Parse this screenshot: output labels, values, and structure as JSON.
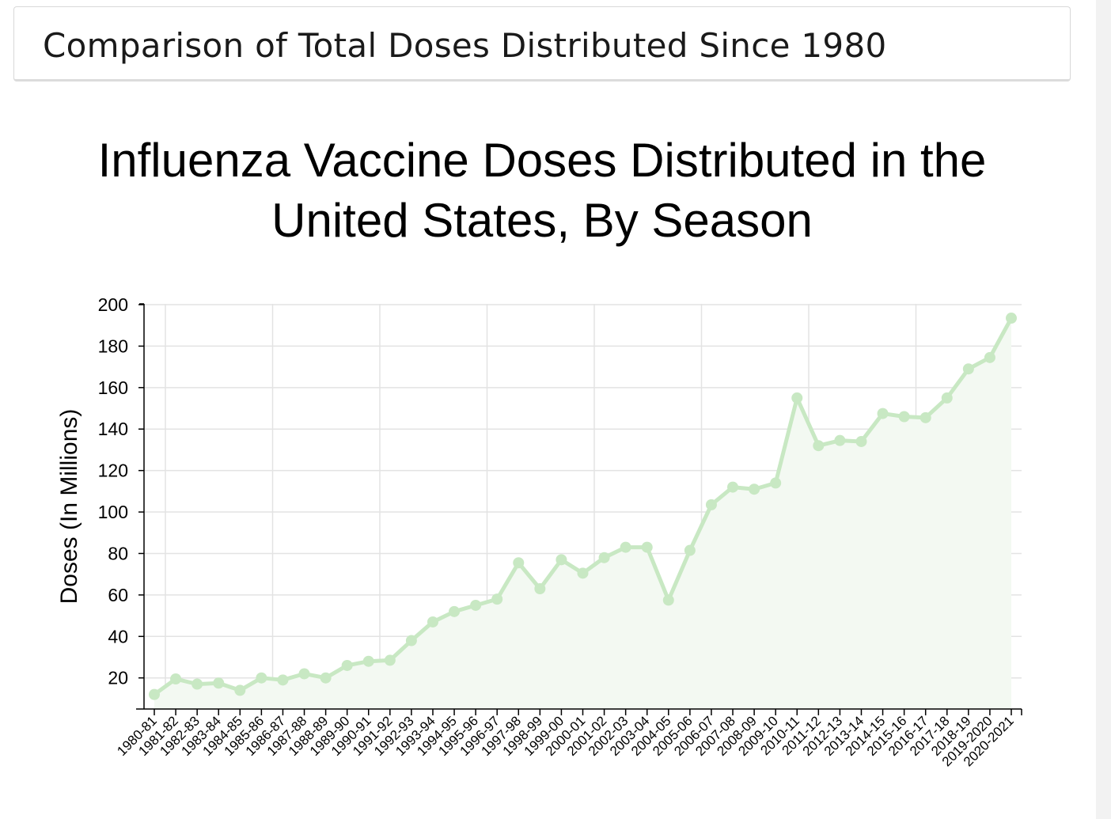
{
  "header": {
    "title": "Comparison of Total Doses Distributed Since 1980"
  },
  "chart_data": {
    "type": "line",
    "title_lines": [
      "Influenza Vaccine Doses Distributed in the",
      "United States, By Season"
    ],
    "ylabel": "Doses (In Millions)",
    "xlabel": "",
    "ylim": [
      5,
      200
    ],
    "yticks": [
      20,
      40,
      60,
      80,
      100,
      120,
      140,
      160,
      180,
      200
    ],
    "grid": true,
    "area_fill": true,
    "line_color": "#c8e8c3",
    "area_color": "#f3f9f2",
    "grid_color": "#e3e3e3",
    "categories": [
      "1980-81",
      "1981-82",
      "1982-83",
      "1983-84",
      "1984-85",
      "1985-86",
      "1986-87",
      "1987-88",
      "1988-89",
      "1989-90",
      "1990-91",
      "1991-92",
      "1992-93",
      "1993-94",
      "1994-95",
      "1995-96",
      "1996-97",
      "1997-98",
      "1998-99",
      "1999-00",
      "2000-01",
      "2001-02",
      "2002-03",
      "2003-04",
      "2004-05",
      "2005-06",
      "2006-07",
      "2007-08",
      "2008-09",
      "2009-10",
      "2010-11",
      "2011-12",
      "2012-13",
      "2013-14",
      "2014-15",
      "2015-16",
      "2016-17",
      "2017-18",
      "2018-19",
      "2019-2020",
      "2020-2021"
    ],
    "series": [
      {
        "values": [
          12,
          19.5,
          17,
          17.5,
          14,
          20,
          19,
          22,
          20,
          26,
          28,
          28.5,
          38,
          47,
          52,
          55,
          58,
          75.5,
          63,
          77,
          70.5,
          78,
          83,
          83,
          57.5,
          81.5,
          103.5,
          112,
          111,
          114,
          155,
          132,
          134.5,
          134,
          147.5,
          146,
          145.5,
          155,
          169,
          174.5,
          193.5
        ]
      }
    ]
  }
}
